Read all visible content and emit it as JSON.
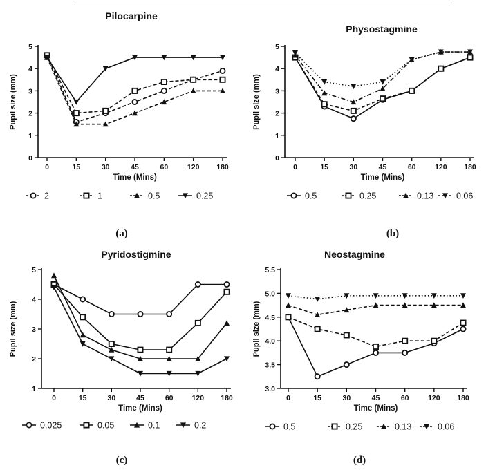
{
  "figure": {
    "captions": [
      "(a)",
      "(b)",
      "(c)",
      "(d)"
    ]
  },
  "chart_data": [
    {
      "type": "line",
      "title": "Pilocarpine",
      "xlabel": "Time (Mins)",
      "ylabel": "Pupil size (mm)",
      "categories": [
        "0",
        "15",
        "30",
        "45",
        "60",
        "120",
        "180"
      ],
      "ylim": [
        0,
        5
      ],
      "yticks": [
        "0",
        "1",
        "2",
        "3",
        "4",
        "5"
      ],
      "grid": false,
      "legend_position": "bottom",
      "series": [
        {
          "name": "2",
          "marker": "circle-open",
          "dash": "dashed",
          "values": [
            4.6,
            1.6,
            2.0,
            2.5,
            3.0,
            3.5,
            3.9
          ]
        },
        {
          "name": "1",
          "marker": "square-open",
          "dash": "dashed",
          "values": [
            4.6,
            2.0,
            2.1,
            3.0,
            3.4,
            3.5,
            3.5
          ]
        },
        {
          "name": "0.5",
          "marker": "triangle-up",
          "dash": "dashed",
          "values": [
            4.5,
            1.5,
            1.5,
            2.0,
            2.5,
            3.0,
            3.0
          ]
        },
        {
          "name": "0.25",
          "marker": "triangle-down",
          "dash": "solid",
          "values": [
            4.5,
            2.5,
            4.0,
            4.5,
            4.5,
            4.5,
            4.5
          ]
        }
      ]
    },
    {
      "type": "line",
      "title": "Physostagmine",
      "xlabel": "Time (Mins)",
      "ylabel": "Pupil size (mm)",
      "categories": [
        "0",
        "15",
        "30",
        "45",
        "60",
        "120",
        "180"
      ],
      "ylim": [
        0,
        5
      ],
      "yticks": [
        "0",
        "1",
        "2",
        "3",
        "4",
        "5"
      ],
      "grid": false,
      "legend_position": "bottom",
      "series": [
        {
          "name": "0.5",
          "marker": "circle-open",
          "dash": "solid",
          "values": [
            4.5,
            2.3,
            1.75,
            2.6,
            3.0,
            4.0,
            4.5
          ]
        },
        {
          "name": "0.25",
          "marker": "square-open",
          "dash": "dashed",
          "values": [
            4.5,
            2.4,
            2.1,
            2.65,
            3.0,
            4.0,
            4.5
          ]
        },
        {
          "name": "0.13",
          "marker": "triangle-up",
          "dash": "dashdot",
          "values": [
            4.6,
            2.9,
            2.5,
            3.1,
            4.4,
            4.75,
            4.75
          ]
        },
        {
          "name": "0.06",
          "marker": "triangle-down",
          "dash": "dotted",
          "values": [
            4.7,
            3.4,
            3.2,
            3.4,
            4.4,
            4.75,
            4.75
          ]
        }
      ]
    },
    {
      "type": "line",
      "title": "Pyridostigmine",
      "xlabel": "Time (Mins)",
      "ylabel": "Pupil size (mm)",
      "categories": [
        "0",
        "15",
        "30",
        "45",
        "60",
        "120",
        "180"
      ],
      "ylim": [
        1,
        5
      ],
      "yticks": [
        "1",
        "2",
        "3",
        "4",
        "5"
      ],
      "grid": false,
      "legend_position": "bottom",
      "series": [
        {
          "name": "0.025",
          "marker": "circle-open",
          "dash": "solid",
          "values": [
            4.5,
            4.0,
            3.5,
            3.5,
            3.5,
            4.5,
            4.5
          ]
        },
        {
          "name": "0.05",
          "marker": "square-open",
          "dash": "solid",
          "values": [
            4.5,
            3.4,
            2.5,
            2.3,
            2.3,
            3.2,
            4.25
          ]
        },
        {
          "name": "0.1",
          "marker": "triangle-up",
          "dash": "solid",
          "values": [
            4.8,
            2.8,
            2.3,
            2.0,
            2.0,
            2.0,
            3.2
          ]
        },
        {
          "name": "0.2",
          "marker": "triangle-down",
          "dash": "solid",
          "values": [
            4.4,
            2.5,
            2.0,
            1.5,
            1.5,
            1.5,
            2.0
          ]
        }
      ]
    },
    {
      "type": "line",
      "title": "Neostagmine",
      "xlabel": "Time (Mins)",
      "ylabel": "Pupil size (mm)",
      "categories": [
        "0",
        "15",
        "30",
        "45",
        "60",
        "120",
        "180"
      ],
      "ylim": [
        3.0,
        5.5
      ],
      "yticks": [
        "3.0",
        "3.5",
        "4.0",
        "4.5",
        "5.0",
        "5.5"
      ],
      "grid": false,
      "legend_position": "bottom",
      "series": [
        {
          "name": "0.5",
          "marker": "circle-open",
          "dash": "solid",
          "values": [
            4.5,
            3.25,
            3.5,
            3.75,
            3.75,
            3.95,
            4.25
          ]
        },
        {
          "name": "0.25",
          "marker": "square-open",
          "dash": "dashed",
          "values": [
            4.5,
            4.25,
            4.12,
            3.88,
            4.0,
            4.0,
            4.38
          ]
        },
        {
          "name": "0.13",
          "marker": "triangle-up",
          "dash": "dashed",
          "values": [
            4.75,
            4.55,
            4.65,
            4.75,
            4.75,
            4.75,
            4.75
          ]
        },
        {
          "name": "0.06",
          "marker": "triangle-down",
          "dash": "dotted",
          "values": [
            4.95,
            4.88,
            4.95,
            4.95,
            4.95,
            4.95,
            4.95
          ]
        }
      ]
    }
  ]
}
